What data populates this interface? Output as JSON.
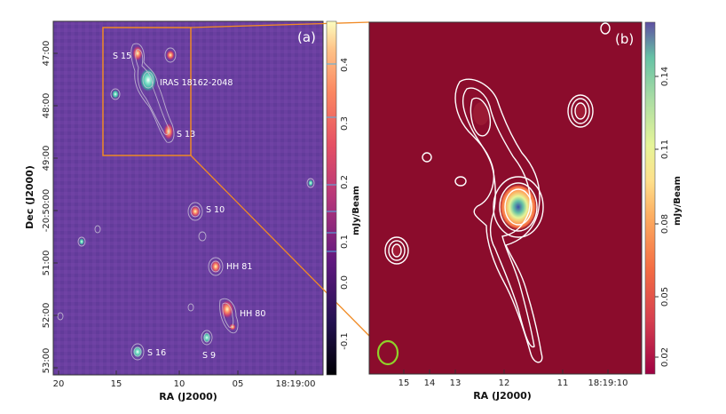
{
  "panel_a": {
    "label": "(a)",
    "xlabel": "RA (J2000)",
    "ylabel": "Dec (J2000)",
    "xticks": [
      "20",
      "15",
      "10",
      "05",
      "18:19:00"
    ],
    "yticks": [
      "47:00",
      "48:00",
      "49:00",
      "-20:50:00",
      "51:00",
      "52:00",
      "53:00"
    ],
    "sources": [
      "S 15",
      "IRAS 18162-2048",
      "S 13",
      "S 10",
      "HH 81",
      "HH 80",
      "S 16",
      "S 9"
    ],
    "colorbar": {
      "label": "mJy/Beam",
      "ticks": [
        "0.4",
        "0.3",
        "0.2",
        "0.1",
        "0.0",
        "-0.1"
      ]
    }
  },
  "panel_b": {
    "label": "(b)",
    "xlabel": "RA (J2000)",
    "xticks": [
      "15",
      "14",
      "13",
      "12",
      "11",
      "18:19:10"
    ],
    "colorbar": {
      "label": "mJy/Beam",
      "ticks": [
        "0.14",
        "0.11",
        "0.08",
        "0.05",
        "0.02"
      ]
    }
  },
  "colors": {
    "zoom_box": "#f08a24",
    "contour": "#ffffff",
    "beam": "#8fd12a",
    "panel_b_background": "#8b0c2c"
  }
}
